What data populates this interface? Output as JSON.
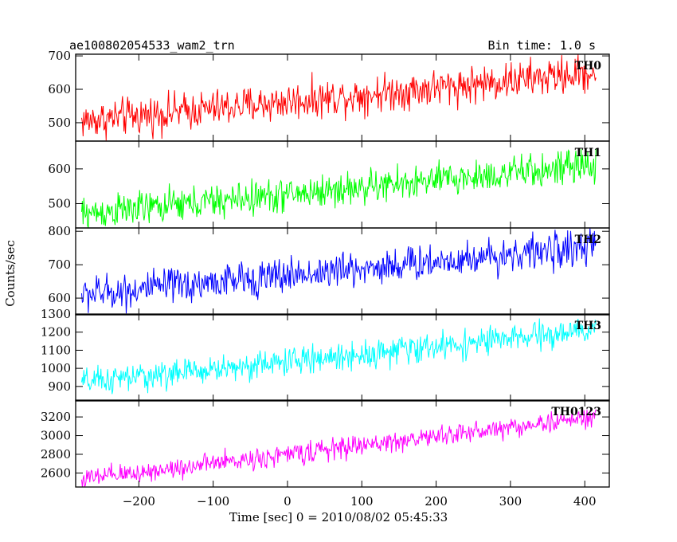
{
  "header": {
    "title": "ae100802054533_wam2_trn",
    "bin_time": "Bin time: 1.0 s"
  },
  "chart_data": {
    "type": "line",
    "title": "ae100802054533_wam2_trn",
    "xlabel": "Time [sec] 0 = 2010/08/02 05:45:33",
    "ylabel": "Counts/sec",
    "xlim": [
      -285,
      433
    ],
    "x_range": [
      -277,
      415
    ],
    "x_ticks": [
      -200,
      -100,
      0,
      100,
      200,
      300,
      400
    ],
    "x_tick_labels": [
      "−200",
      "−100",
      "0",
      "100",
      "200",
      "300",
      "400"
    ],
    "grid": false,
    "panels": [
      {
        "name": "TH0",
        "color": "#ff0000",
        "ylim": [
          445,
          705
        ],
        "y_ticks": [
          500,
          600,
          700
        ],
        "y_tick_labels": [
          "500",
          "600",
          "700"
        ],
        "start_value": 505,
        "end_value": 650,
        "noise": 40
      },
      {
        "name": "TH1",
        "color": "#00ff00",
        "ylim": [
          430,
          680
        ],
        "y_ticks": [
          500,
          600
        ],
        "y_tick_labels": [
          "500",
          "600"
        ],
        "start_value": 470,
        "end_value": 610,
        "noise": 35
      },
      {
        "name": "TH2",
        "color": "#0000ff",
        "ylim": [
          550,
          810
        ],
        "y_ticks": [
          600,
          700,
          800
        ],
        "y_tick_labels": [
          "600",
          "700",
          "800"
        ],
        "start_value": 610,
        "end_value": 755,
        "noise": 38
      },
      {
        "name": "TH3",
        "color": "#00ffff",
        "ylim": [
          820,
          1300
        ],
        "y_ticks": [
          900,
          1000,
          1100,
          1200,
          1300
        ],
        "y_tick_labels": [
          "900",
          "1000",
          "1100",
          "1200",
          "1300"
        ],
        "start_value": 920,
        "end_value": 1210,
        "noise": 55
      },
      {
        "name": "TH0123",
        "color": "#ff00ff",
        "ylim": [
          2450,
          3380
        ],
        "y_ticks": [
          2600,
          2800,
          3000,
          3200
        ],
        "y_tick_labels": [
          "2600",
          "2800",
          "3000",
          "3200"
        ],
        "start_value": 2530,
        "end_value": 3200,
        "noise": 80
      }
    ]
  }
}
